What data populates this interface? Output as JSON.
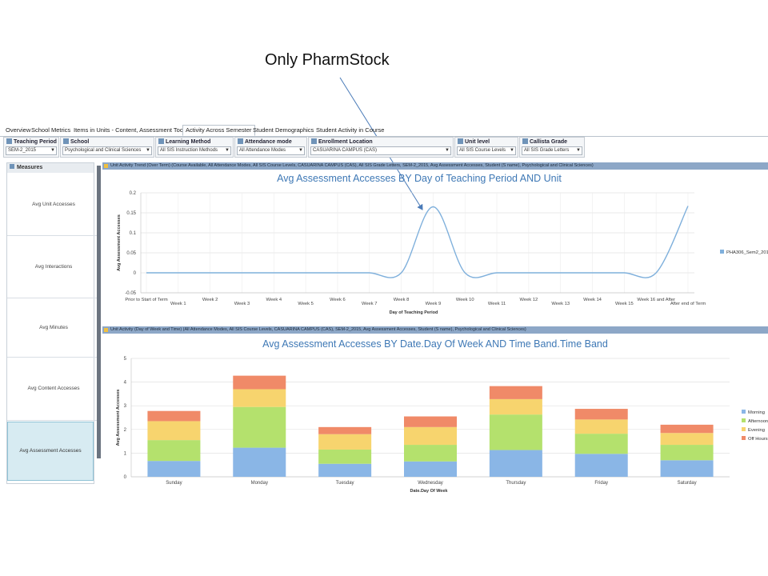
{
  "callout": {
    "text": "Only PharmStock"
  },
  "tabs": [
    {
      "label": "Overview",
      "active": false
    },
    {
      "label": "School Metrics",
      "active": false
    },
    {
      "label": "Items in Units - Content, Assessment Tools",
      "active": false
    },
    {
      "label": "Activity Across Semester",
      "active": true
    },
    {
      "label": "Student Demographics",
      "active": false
    },
    {
      "label": "Student Activity in Course",
      "active": false
    }
  ],
  "filters": [
    {
      "label": "Teaching Period",
      "value": "SEM-2_2015"
    },
    {
      "label": "School",
      "value": "Psychological and Clinical Sciences"
    },
    {
      "label": "Learning Method",
      "value": "All SIS Instruction Methods"
    },
    {
      "label": "Attendance mode",
      "value": "All Attendance Modes"
    },
    {
      "label": "Enrollment Location",
      "value": "CASUARINA CAMPUS (CAS)"
    },
    {
      "label": "Unit level",
      "value": "All SIS Course Levels"
    },
    {
      "label": "Callista Grade",
      "value": "All SIS Grade Letters"
    }
  ],
  "measures": {
    "title": "Measures",
    "items": [
      {
        "label": "Avg Unit Accesses",
        "selected": false
      },
      {
        "label": "Avg Interactions",
        "selected": false
      },
      {
        "label": "Avg Minutes",
        "selected": false
      },
      {
        "label": "Avg Content Accesses",
        "selected": false
      },
      {
        "label": "Avg Assessment Accesses",
        "selected": true
      }
    ]
  },
  "panel1": {
    "header": "Unit Activity Trend (Over Term)  (Course Available, All Attendance Modes, All SIS Course Levels, CASUARINA CAMPUS (CAS), All SIS Grade Letters, SEM-2_2015, Avg Assessment Accesses, Student (S name), Psychological and Clinical Sciences)"
  },
  "panel2": {
    "header": "Unit Activity (Day of Week and Time)  (All Attendance Modes, All SIS Course Levels, CASUARINA CAMPUS (CAS), SEM-2_2015, Avg Assessment Accesses, Student (S name), Psychological and Clinical Sciences)"
  },
  "chart_data": [
    {
      "type": "line",
      "title": "Avg Assessment Accesses BY Day of Teaching Period AND Unit",
      "xlabel": "Day of Teaching Period",
      "ylabel": "Avg Assessment Accesses",
      "ylim": [
        -0.05,
        0.2
      ],
      "yticks": [
        "0.2",
        "0.15",
        "0.1",
        "0.05",
        "0",
        "-0.05"
      ],
      "categories": [
        "Prior to Start of Term",
        "Week 1",
        "Week 2",
        "Week 3",
        "Week 4",
        "Week 5",
        "Week 6",
        "Week 7",
        "Week 8",
        "Week 9",
        "Week 10",
        "Week 11",
        "Week 12",
        "Week 13",
        "Week 14",
        "Week 15",
        "Week 16 and After",
        "After end of Term"
      ],
      "series": [
        {
          "name": "PHA306_Sem2_2015",
          "color": "#7fb0dc",
          "values": [
            0,
            0,
            0,
            0,
            0,
            0,
            0,
            0,
            0,
            0.165,
            0,
            0,
            0,
            0,
            0,
            0,
            0,
            0.167
          ]
        }
      ],
      "grid": true,
      "legend": "right"
    },
    {
      "type": "bar",
      "stacked": true,
      "title": "Avg Assessment Accesses BY Date.Day Of Week AND Time Band.Time Band",
      "xlabel": "Date.Day Of Week",
      "ylabel": "Avg Assessment Accesses",
      "ylim": [
        0,
        5
      ],
      "yticks": [
        "5",
        "4",
        "3",
        "2",
        "1",
        "0"
      ],
      "categories": [
        "Sunday",
        "Monday",
        "Tuesday",
        "Wednesday",
        "Thursday",
        "Friday",
        "Saturday"
      ],
      "series": [
        {
          "name": "Morning",
          "color": "#8ab6e6",
          "values": [
            0.67,
            1.23,
            0.55,
            0.65,
            1.13,
            0.97,
            0.7
          ]
        },
        {
          "name": "Afternoon",
          "color": "#b4e16d",
          "values": [
            0.88,
            1.72,
            0.6,
            0.7,
            1.5,
            0.85,
            0.65
          ]
        },
        {
          "name": "Evening",
          "color": "#f7d46e",
          "values": [
            0.8,
            0.75,
            0.65,
            0.75,
            0.65,
            0.6,
            0.5
          ]
        },
        {
          "name": "Off Hours",
          "color": "#f08a68",
          "values": [
            0.43,
            0.57,
            0.3,
            0.45,
            0.55,
            0.45,
            0.35
          ]
        }
      ],
      "grid": true,
      "legend": "right"
    }
  ]
}
